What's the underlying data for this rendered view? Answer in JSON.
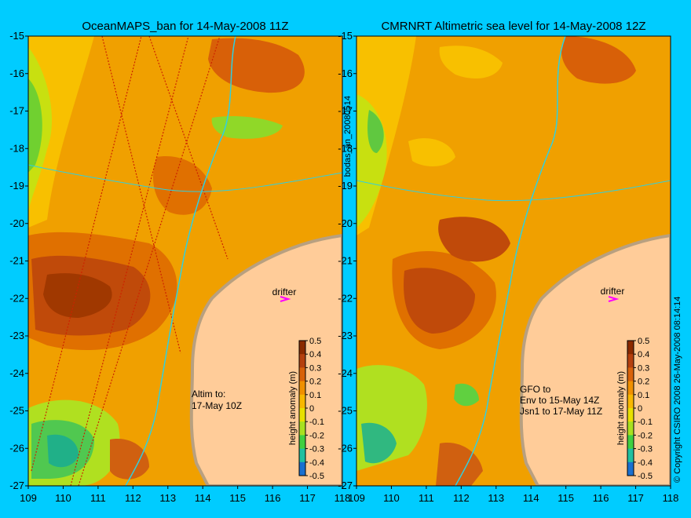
{
  "maps": [
    {
      "title": "OceanMAPS_ban for 14-May-2008 11Z",
      "annotation": [
        "Altim to:",
        "17-May 10Z"
      ],
      "drifter_label": "drifter"
    },
    {
      "title": "CMRNRT Altimetric sea level  for 14-May-2008 12Z",
      "annotation": [
        "GFO to",
        "Env to 15-May 14Z",
        "Jsn1 to 17-May 11Z"
      ],
      "drifter_label": "drifter"
    }
  ],
  "lat_ticks": [
    "-15",
    "-16",
    "-17",
    "-18",
    "-19",
    "-20",
    "-21",
    "-22",
    "-23",
    "-24",
    "-25",
    "-26",
    "-27"
  ],
  "lon_ticks": [
    "109",
    "110",
    "111",
    "112",
    "113",
    "114",
    "115",
    "116",
    "117",
    "118"
  ],
  "colorbar": {
    "label": "height anomaly (m)",
    "ticks": [
      "0.5",
      "0.4",
      "0.3",
      "0.2",
      "0.1",
      "0",
      "-0.1",
      "-0.2",
      "-0.3",
      "-0.4",
      "-0.5"
    ],
    "colors": [
      "#8a2a00",
      "#b5400e",
      "#d8620a",
      "#f09000",
      "#f8b800",
      "#e8e000",
      "#a8e020",
      "#40d040",
      "#20c0a0",
      "#1a70d0",
      "#101880"
    ]
  },
  "side_text": {
    "middle": "bodas_an_20080514",
    "right": "© Copyright CSIRO 2008   26-May-2008 08:14:14"
  },
  "colors": {
    "background": "#00ccff",
    "land": "#ffcc99",
    "coast": "#b8a080",
    "isobath": "#30d0e0",
    "drifter": "#ff00ff"
  }
}
